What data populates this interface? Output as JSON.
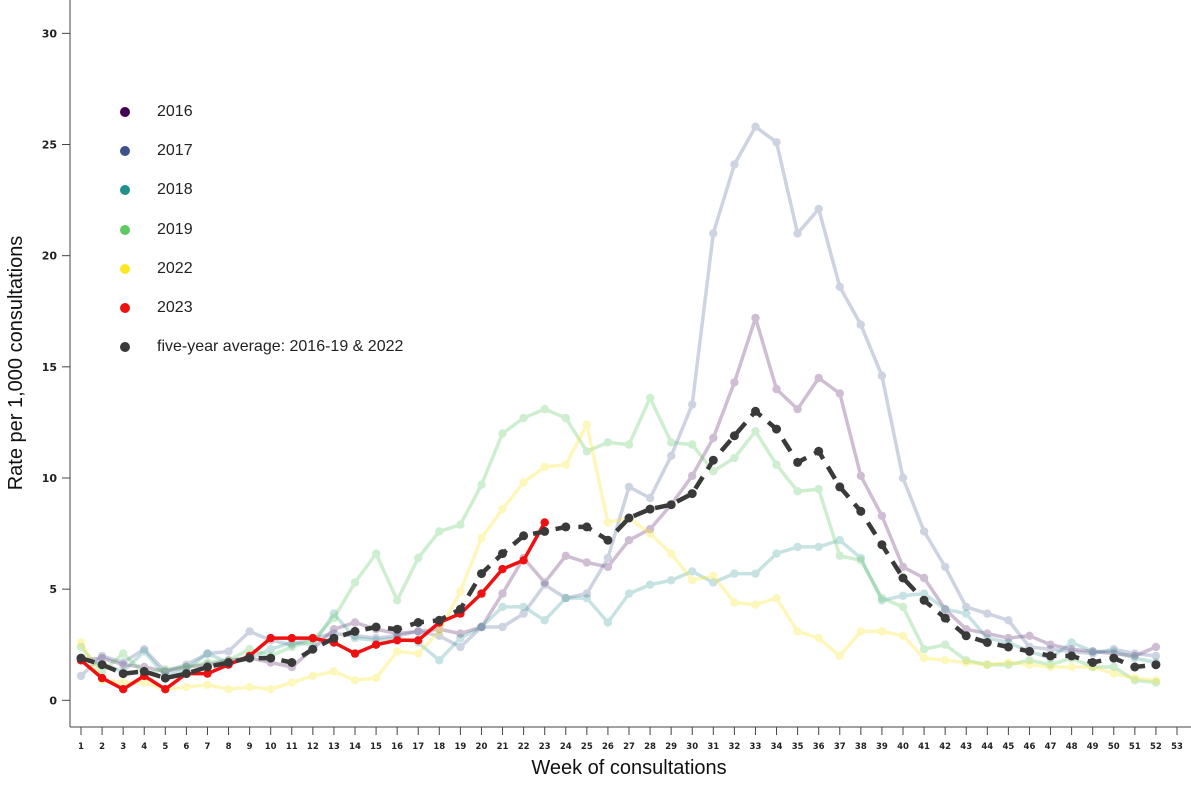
{
  "chart_data": {
    "type": "line",
    "title": "",
    "xlabel": "Week of consultations",
    "ylabel": "Rate per 1,000 consultations",
    "xlim": [
      1,
      53
    ],
    "ylim": [
      -1.2,
      31.5
    ],
    "y_ticks": [
      0,
      5,
      10,
      15,
      20,
      25,
      30
    ],
    "x_ticks": [
      1,
      2,
      3,
      4,
      5,
      6,
      7,
      8,
      9,
      10,
      11,
      12,
      13,
      14,
      15,
      16,
      17,
      18,
      19,
      20,
      21,
      22,
      23,
      24,
      25,
      26,
      27,
      28,
      29,
      30,
      31,
      32,
      33,
      34,
      35,
      36,
      37,
      38,
      39,
      40,
      41,
      42,
      43,
      44,
      45,
      46,
      47,
      48,
      49,
      50,
      51,
      52,
      53
    ],
    "grid": false,
    "legend_position": "top-left",
    "series": [
      {
        "name": "2016",
        "color": "#440154",
        "opacity": 0.25,
        "style": "solid",
        "x": [
          1,
          2,
          3,
          4,
          5,
          6,
          7,
          8,
          9,
          10,
          11,
          12,
          13,
          14,
          15,
          16,
          17,
          18,
          19,
          20,
          21,
          22,
          23,
          24,
          25,
          26,
          27,
          28,
          29,
          30,
          31,
          32,
          33,
          34,
          35,
          36,
          37,
          38,
          39,
          40,
          41,
          42,
          43,
          44,
          45,
          46,
          47,
          48,
          49,
          50,
          51,
          52
        ],
        "y": [
          1.8,
          1.9,
          1.6,
          1.5,
          1.3,
          1.5,
          1.6,
          1.8,
          1.9,
          1.7,
          1.5,
          2.3,
          3.2,
          3.5,
          3.2,
          3.0,
          3.1,
          3.2,
          3.0,
          3.3,
          4.8,
          6.4,
          5.3,
          6.5,
          6.2,
          6.0,
          7.2,
          7.7,
          8.8,
          10.1,
          11.8,
          14.3,
          17.2,
          14.0,
          13.1,
          14.5,
          13.8,
          10.1,
          8.3,
          6.0,
          5.5,
          4.1,
          3.2,
          3.0,
          2.8,
          2.9,
          2.5,
          2.3,
          2.2,
          2.1,
          2.0,
          2.4
        ]
      },
      {
        "name": "2017",
        "color": "#3b528b",
        "opacity": 0.25,
        "style": "solid",
        "x": [
          1,
          2,
          3,
          4,
          5,
          6,
          7,
          8,
          9,
          10,
          11,
          12,
          13,
          14,
          15,
          16,
          17,
          18,
          19,
          20,
          21,
          22,
          23,
          24,
          25,
          26,
          27,
          28,
          29,
          30,
          31,
          32,
          33,
          34,
          35,
          36,
          37,
          38,
          39,
          40,
          41,
          42,
          43,
          44,
          45,
          46,
          47,
          48,
          49,
          50,
          51,
          52
        ],
        "y": [
          1.1,
          2.0,
          1.7,
          2.3,
          1.3,
          1.6,
          2.1,
          2.2,
          3.1,
          2.7,
          2.5,
          2.8,
          3.0,
          2.9,
          2.8,
          2.9,
          3.1,
          2.9,
          2.4,
          3.3,
          3.3,
          3.9,
          5.2,
          4.6,
          4.8,
          6.4,
          9.6,
          9.1,
          11.0,
          13.3,
          21.0,
          24.1,
          25.8,
          25.1,
          21.0,
          22.1,
          18.6,
          16.9,
          14.6,
          10.0,
          7.6,
          6.0,
          4.2,
          3.9,
          3.6,
          2.4,
          2.3,
          2.2,
          2.1,
          2.3,
          2.1,
          2.0
        ]
      },
      {
        "name": "2018",
        "color": "#21908d",
        "opacity": 0.25,
        "style": "solid",
        "x": [
          1,
          2,
          3,
          4,
          5,
          6,
          7,
          8,
          9,
          10,
          11,
          12,
          13,
          14,
          15,
          16,
          17,
          18,
          19,
          20,
          21,
          22,
          23,
          24,
          25,
          26,
          27,
          28,
          29,
          30,
          31,
          32,
          33,
          34,
          35,
          36,
          37,
          38,
          39,
          40,
          41,
          42,
          43,
          44,
          45,
          46,
          47,
          48,
          49,
          50,
          51,
          52
        ],
        "y": [
          1.9,
          1.6,
          1.3,
          2.2,
          1.1,
          1.4,
          2.1,
          1.7,
          1.9,
          2.3,
          2.6,
          2.5,
          3.9,
          2.8,
          2.7,
          2.8,
          2.6,
          1.8,
          2.8,
          3.3,
          4.2,
          4.2,
          3.6,
          4.6,
          4.6,
          3.5,
          4.8,
          5.2,
          5.4,
          5.8,
          5.3,
          5.7,
          5.7,
          6.6,
          6.9,
          6.9,
          7.2,
          6.4,
          4.5,
          4.7,
          4.8,
          4.1,
          3.9,
          2.8,
          2.6,
          2.2,
          1.9,
          2.6,
          2.2,
          2.2,
          1.9,
          1.7
        ]
      },
      {
        "name": "2019",
        "color": "#5ec962",
        "opacity": 0.3,
        "style": "solid",
        "x": [
          1,
          2,
          3,
          4,
          5,
          6,
          7,
          8,
          9,
          10,
          11,
          12,
          13,
          14,
          15,
          16,
          17,
          18,
          19,
          20,
          21,
          22,
          23,
          24,
          25,
          26,
          27,
          28,
          29,
          30,
          31,
          32,
          33,
          34,
          35,
          36,
          37,
          38,
          39,
          40,
          41,
          42,
          43,
          44,
          45,
          46,
          47,
          48,
          49,
          50,
          51,
          52
        ],
        "y": [
          2.4,
          1.3,
          2.1,
          1.2,
          1.4,
          1.5,
          1.7,
          1.8,
          2.3,
          2.0,
          2.4,
          2.7,
          3.7,
          5.3,
          6.6,
          4.5,
          6.4,
          7.6,
          7.9,
          9.7,
          12.0,
          12.7,
          13.1,
          12.7,
          11.2,
          11.6,
          11.5,
          13.6,
          11.6,
          11.5,
          10.3,
          10.9,
          12.1,
          10.6,
          9.4,
          9.5,
          6.5,
          6.3,
          4.6,
          4.2,
          2.3,
          2.5,
          1.8,
          1.6,
          1.6,
          1.8,
          1.6,
          1.9,
          1.5,
          1.5,
          0.9,
          0.8
        ]
      },
      {
        "name": "2022",
        "color": "#fde725",
        "opacity": 0.3,
        "style": "solid",
        "x": [
          1,
          2,
          3,
          4,
          5,
          6,
          7,
          8,
          9,
          10,
          11,
          12,
          13,
          14,
          15,
          16,
          17,
          18,
          19,
          20,
          21,
          22,
          23,
          24,
          25,
          26,
          27,
          28,
          29,
          30,
          31,
          32,
          33,
          34,
          35,
          36,
          37,
          38,
          39,
          40,
          41,
          42,
          43,
          44,
          45,
          46,
          47,
          48,
          49,
          50,
          51,
          52
        ],
        "y": [
          2.6,
          0.9,
          0.8,
          0.8,
          0.5,
          0.6,
          0.7,
          0.5,
          0.6,
          0.5,
          0.8,
          1.1,
          1.3,
          0.9,
          1.0,
          2.2,
          2.1,
          3.1,
          4.9,
          7.3,
          8.6,
          9.8,
          10.5,
          10.6,
          12.4,
          8.0,
          8.2,
          7.5,
          6.6,
          5.4,
          5.6,
          4.4,
          4.3,
          4.6,
          3.1,
          2.8,
          2.0,
          3.1,
          3.1,
          2.9,
          1.9,
          1.8,
          1.7,
          1.6,
          1.7,
          1.6,
          1.5,
          1.5,
          1.5,
          1.2,
          1.0,
          0.9
        ]
      },
      {
        "name": "2023",
        "color": "#ee1111",
        "opacity": 1,
        "style": "solid",
        "x": [
          1,
          2,
          3,
          4,
          5,
          6,
          7,
          8,
          9,
          10,
          11,
          12,
          13,
          14,
          15,
          16,
          17,
          18,
          19,
          20,
          21,
          22,
          23
        ],
        "y": [
          1.8,
          1.0,
          0.5,
          1.1,
          0.5,
          1.2,
          1.2,
          1.6,
          2.0,
          2.8,
          2.8,
          2.8,
          2.6,
          2.1,
          2.5,
          2.7,
          2.7,
          3.5,
          3.9,
          4.8,
          5.9,
          6.3,
          8.0
        ]
      },
      {
        "name": "five-year average: 2016-19 & 2022",
        "color": "#3a3a3a",
        "opacity": 1,
        "style": "dashed",
        "x": [
          1,
          2,
          3,
          4,
          5,
          6,
          7,
          8,
          9,
          10,
          11,
          12,
          13,
          14,
          15,
          16,
          17,
          18,
          19,
          20,
          21,
          22,
          23,
          24,
          25,
          26,
          27,
          28,
          29,
          30,
          31,
          32,
          33,
          34,
          35,
          36,
          37,
          38,
          39,
          40,
          41,
          42,
          43,
          44,
          45,
          46,
          47,
          48,
          49,
          50,
          51,
          52
        ],
        "y": [
          1.9,
          1.6,
          1.2,
          1.3,
          1.0,
          1.2,
          1.5,
          1.7,
          1.9,
          1.9,
          1.7,
          2.3,
          2.8,
          3.1,
          3.3,
          3.2,
          3.5,
          3.6,
          4.1,
          5.7,
          6.6,
          7.4,
          7.6,
          7.8,
          7.8,
          7.2,
          8.2,
          8.6,
          8.8,
          9.3,
          10.8,
          11.9,
          13.0,
          12.2,
          10.7,
          11.2,
          9.6,
          8.5,
          7.0,
          5.5,
          4.5,
          3.7,
          2.9,
          2.6,
          2.4,
          2.2,
          2.0,
          2.0,
          1.7,
          1.9,
          1.5,
          1.6
        ]
      }
    ]
  }
}
